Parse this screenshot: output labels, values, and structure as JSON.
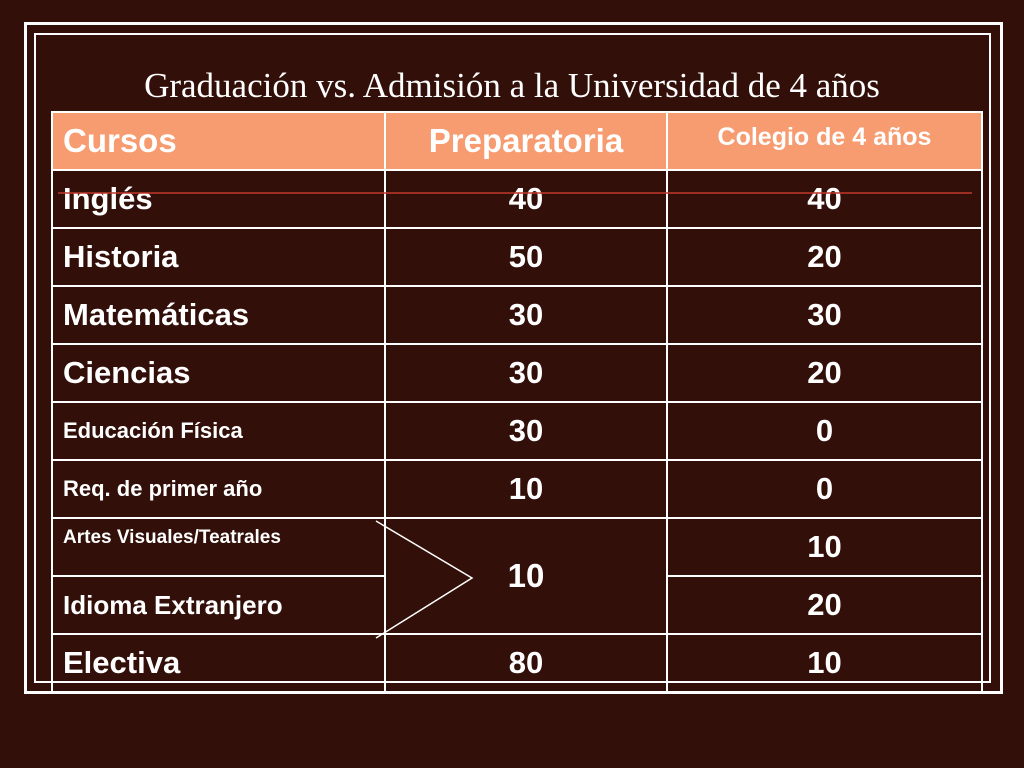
{
  "title": "Graduación vs. Admisión a la Universidad de 4 años",
  "table": {
    "headers": {
      "course": "Cursos",
      "high_school": "Preparatoria",
      "college": "Colegio de 4 años"
    },
    "rows": [
      {
        "course": "Inglés",
        "high_school": "40",
        "college": "40"
      },
      {
        "course": "Historia",
        "high_school": "50",
        "college": "20"
      },
      {
        "course": "Matemáticas",
        "high_school": "30",
        "college": "30"
      },
      {
        "course": "Ciencias",
        "high_school": "30",
        "college": "20"
      },
      {
        "course": "Educación Física",
        "high_school": "30",
        "college": "0"
      },
      {
        "course": "Req. de primer año",
        "high_school": "10",
        "college": "0"
      },
      {
        "course": "Artes Visuales/Teatrales",
        "high_school": "10",
        "college": "10"
      },
      {
        "course": "Idioma Extranjero",
        "college": "20"
      },
      {
        "course": "Electiva",
        "high_school": "80",
        "college": "10"
      }
    ]
  },
  "colors": {
    "background": "#330f09",
    "header_fill": "#f79b70",
    "text": "#ffffff",
    "accent_line": "#c0392b"
  }
}
